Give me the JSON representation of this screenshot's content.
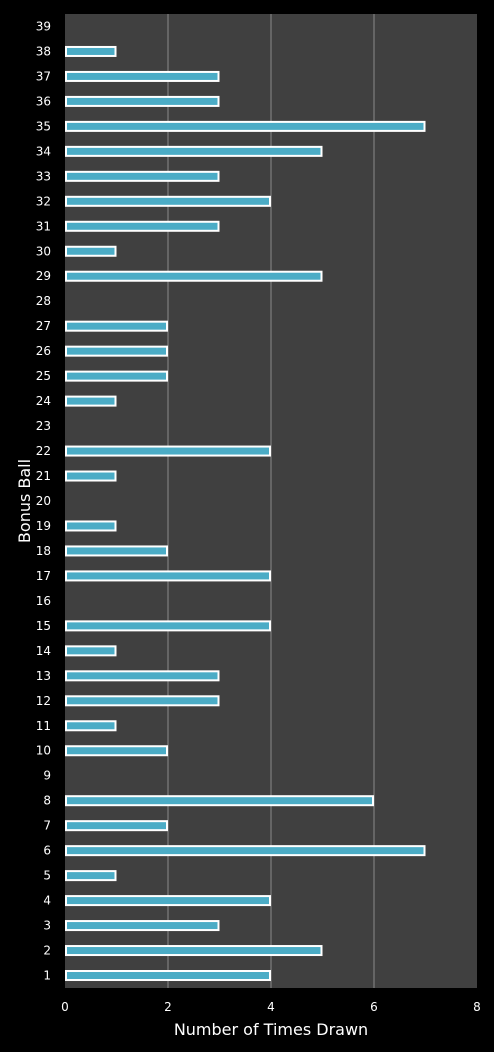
{
  "chart_data": {
    "type": "bar",
    "orientation": "horizontal",
    "xlabel": "Number of Times Drawn",
    "ylabel": "Bonus Ball",
    "xlim": [
      0,
      8
    ],
    "xticks": [
      0,
      2,
      4,
      6,
      8
    ],
    "grid": true,
    "colors": {
      "page_background": "#000000",
      "plot_background": "#404040",
      "gridline": "#8a8a8a",
      "bar_fill": "#4bacc6",
      "bar_outline": "#ffffff",
      "text": "#ffffff"
    },
    "categories": [
      "1",
      "2",
      "3",
      "4",
      "5",
      "6",
      "7",
      "8",
      "9",
      "10",
      "11",
      "12",
      "13",
      "14",
      "15",
      "16",
      "17",
      "18",
      "19",
      "20",
      "21",
      "22",
      "23",
      "24",
      "25",
      "26",
      "27",
      "28",
      "29",
      "30",
      "31",
      "32",
      "33",
      "34",
      "35",
      "36",
      "37",
      "38",
      "39"
    ],
    "values": [
      4,
      5,
      3,
      4,
      1,
      7,
      2,
      6,
      0,
      2,
      1,
      3,
      3,
      1,
      4,
      0,
      4,
      2,
      1,
      0,
      1,
      4,
      0,
      1,
      2,
      2,
      2,
      0,
      5,
      1,
      3,
      4,
      3,
      5,
      7,
      3,
      3,
      1,
      0
    ]
  }
}
